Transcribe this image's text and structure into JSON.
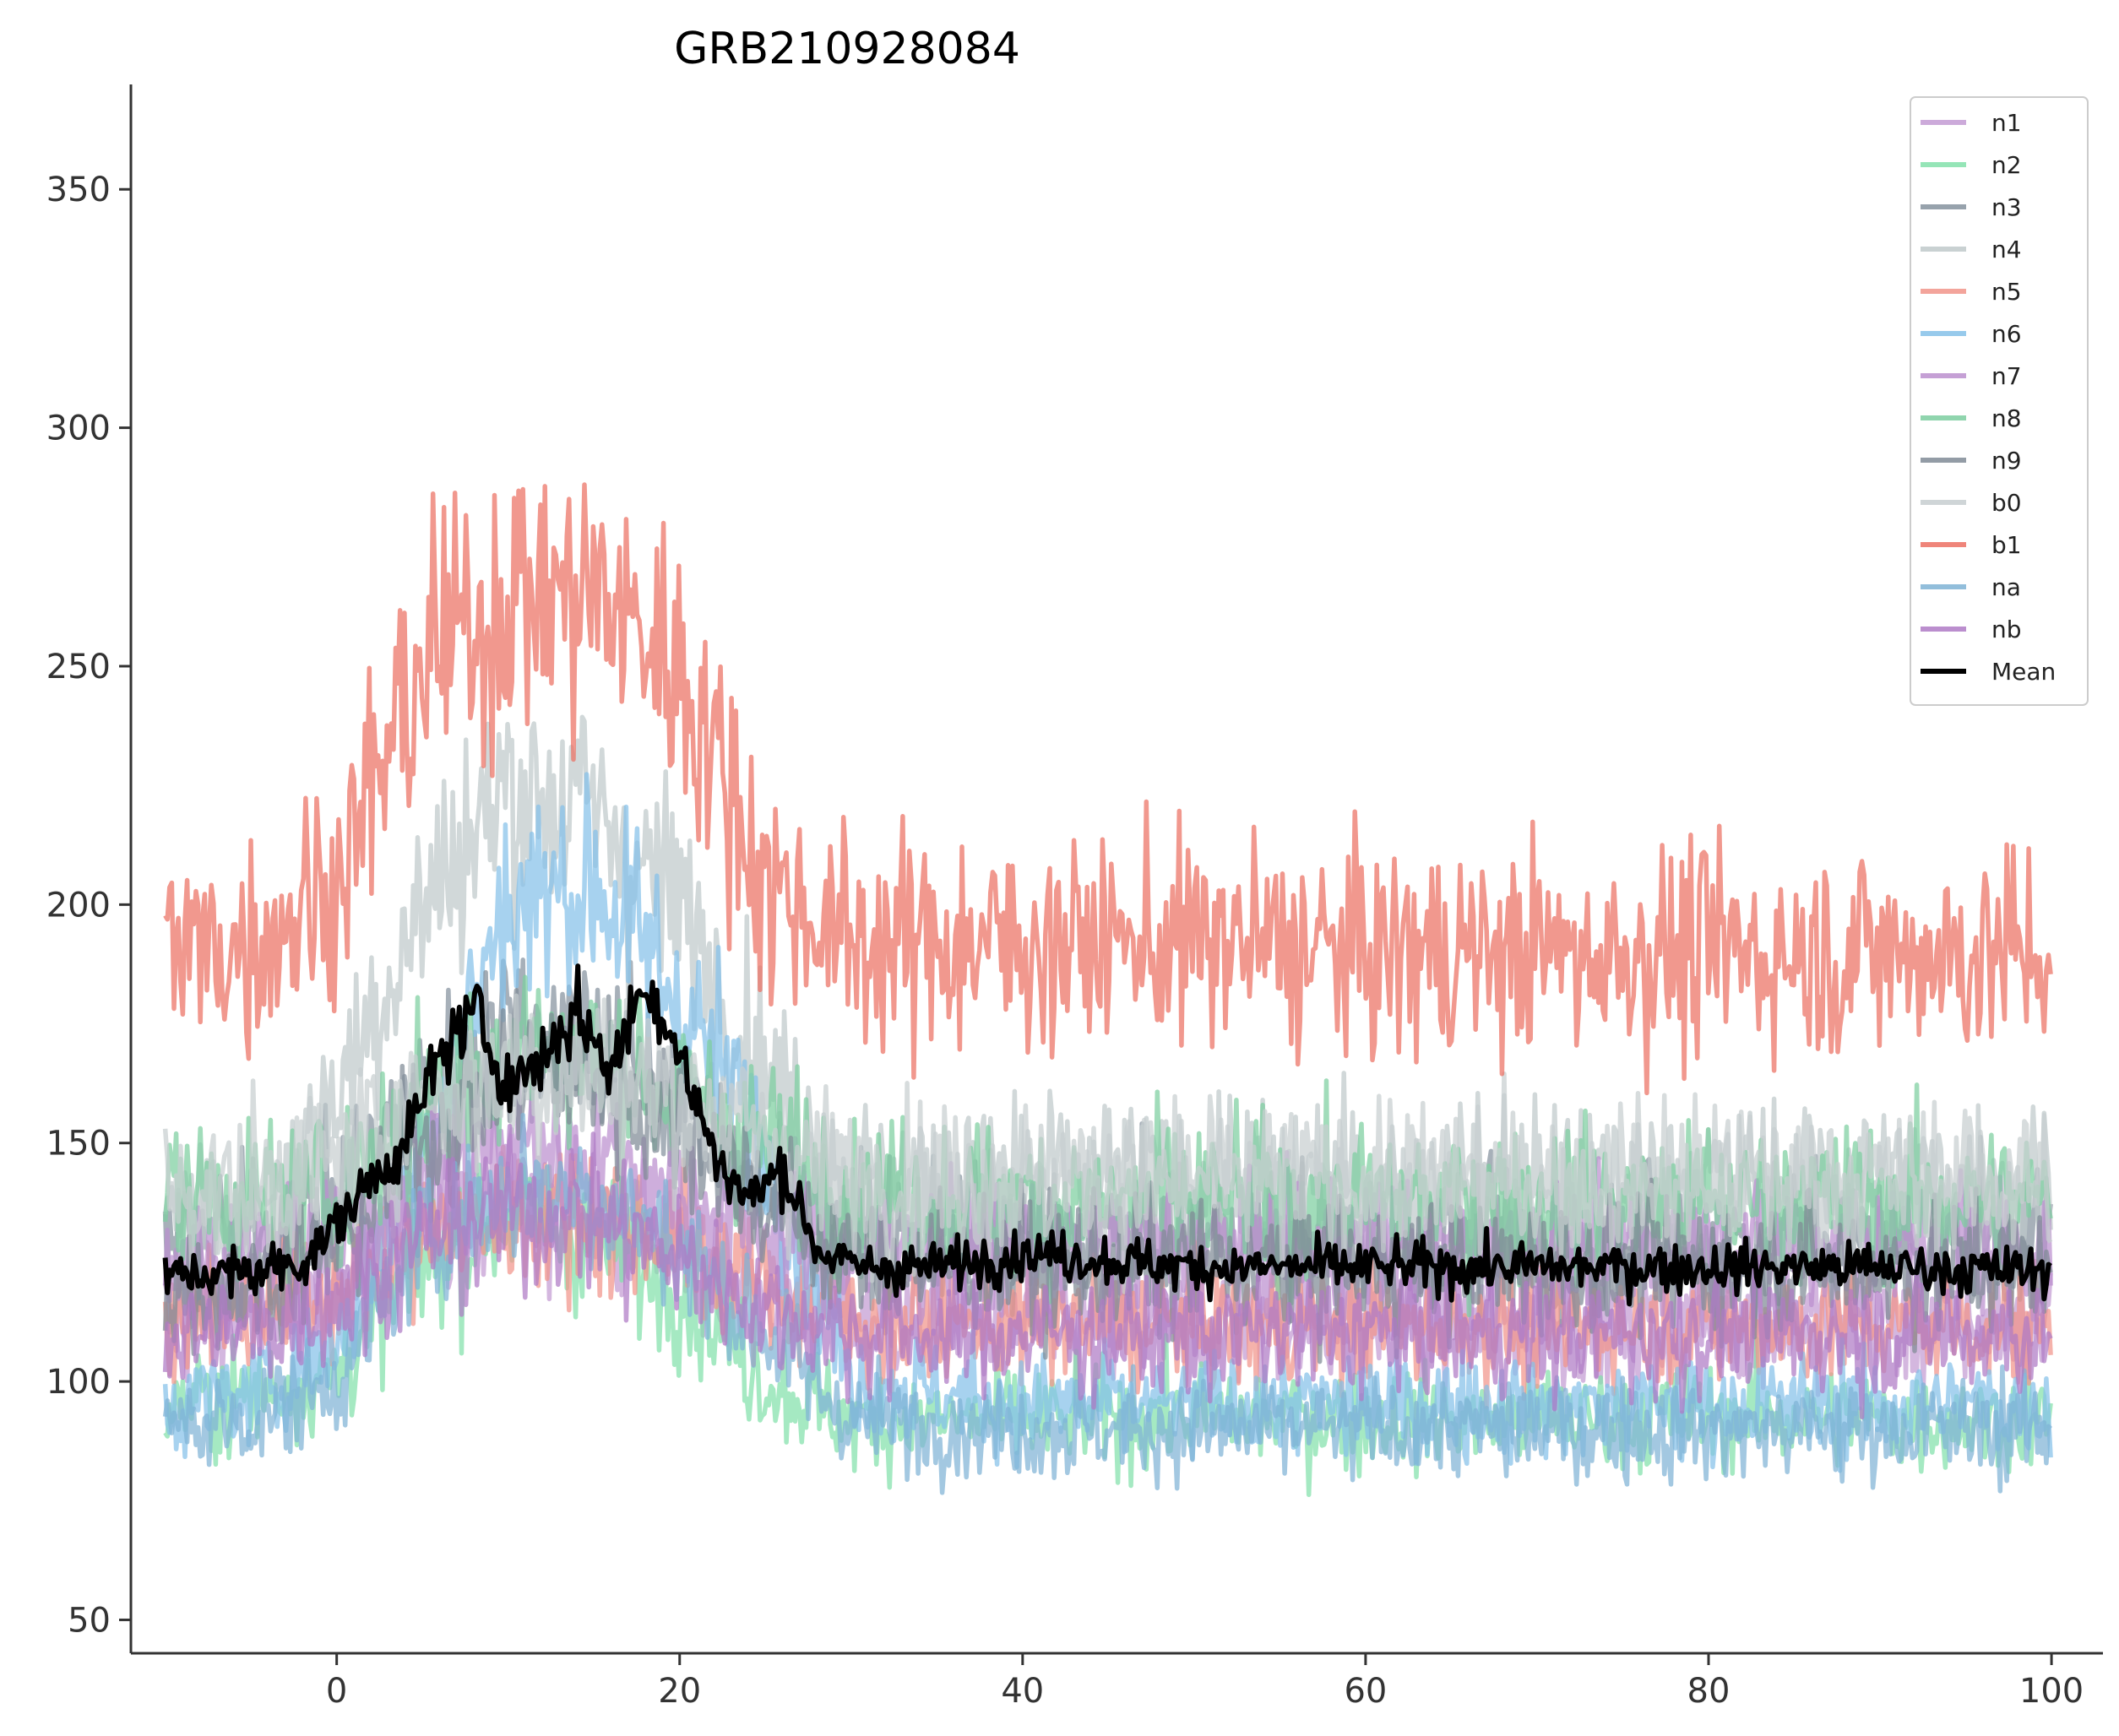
{
  "chart_data": {
    "type": "line",
    "title": "GRB210928084",
    "xlabel": "",
    "ylabel": "",
    "xlim": [
      -12,
      103
    ],
    "ylim": [
      43,
      372
    ],
    "xticks": [
      0,
      20,
      40,
      60,
      80,
      100
    ],
    "yticks": [
      50,
      100,
      150,
      200,
      250,
      300,
      350
    ],
    "grid": false,
    "legend": "top-right",
    "x_range": [
      -10,
      100
    ],
    "series": [
      {
        "name": "n1",
        "color": "#c39bd3",
        "values": [
          [
            -10,
            112
          ],
          [
            -5,
            115
          ],
          [
            0,
            120
          ],
          [
            5,
            138
          ],
          [
            10,
            140
          ],
          [
            15,
            135
          ],
          [
            20,
            128
          ],
          [
            25,
            118
          ],
          [
            30,
            114
          ],
          [
            40,
            112
          ],
          [
            50,
            112
          ],
          [
            60,
            113
          ],
          [
            70,
            112
          ],
          [
            80,
            113
          ],
          [
            90,
            112
          ],
          [
            100,
            112
          ]
        ]
      },
      {
        "name": "n2",
        "color": "#82e0aa",
        "values": [
          [
            -10,
            95
          ],
          [
            -5,
            97
          ],
          [
            0,
            102
          ],
          [
            5,
            125
          ],
          [
            10,
            135
          ],
          [
            15,
            130
          ],
          [
            20,
            120
          ],
          [
            25,
            100
          ],
          [
            30,
            92
          ],
          [
            40,
            92
          ],
          [
            50,
            93
          ],
          [
            60,
            92
          ],
          [
            70,
            92
          ],
          [
            80,
            93
          ],
          [
            90,
            92
          ],
          [
            100,
            92
          ]
        ]
      },
      {
        "name": "n3",
        "color": "#85929e",
        "values": [
          [
            -10,
            130
          ],
          [
            -5,
            130
          ],
          [
            0,
            138
          ],
          [
            5,
            160
          ],
          [
            10,
            175
          ],
          [
            15,
            172
          ],
          [
            20,
            160
          ],
          [
            25,
            140
          ],
          [
            30,
            130
          ],
          [
            40,
            130
          ],
          [
            50,
            130
          ],
          [
            60,
            130
          ],
          [
            70,
            129
          ],
          [
            80,
            130
          ],
          [
            90,
            130
          ],
          [
            100,
            130
          ]
        ]
      },
      {
        "name": "n4",
        "color": "#bfc9ca",
        "values": [
          [
            -10,
            135
          ],
          [
            -5,
            135
          ],
          [
            0,
            160
          ],
          [
            5,
            200
          ],
          [
            10,
            225
          ],
          [
            15,
            220
          ],
          [
            20,
            200
          ],
          [
            25,
            165
          ],
          [
            30,
            142
          ],
          [
            40,
            143
          ],
          [
            50,
            143
          ],
          [
            60,
            142
          ],
          [
            70,
            142
          ],
          [
            80,
            143
          ],
          [
            90,
            142
          ],
          [
            100,
            142
          ]
        ]
      },
      {
        "name": "n5",
        "color": "#f1948a",
        "values": [
          [
            -10,
            115
          ],
          [
            -5,
            114
          ],
          [
            0,
            120
          ],
          [
            5,
            130
          ],
          [
            10,
            135
          ],
          [
            15,
            135
          ],
          [
            20,
            130
          ],
          [
            25,
            120
          ],
          [
            30,
            112
          ],
          [
            40,
            112
          ],
          [
            50,
            112
          ],
          [
            60,
            112
          ],
          [
            70,
            112
          ],
          [
            80,
            112
          ],
          [
            90,
            112
          ],
          [
            100,
            112
          ]
        ]
      },
      {
        "name": "n6",
        "color": "#85c1e9",
        "values": [
          [
            -10,
            95
          ],
          [
            -5,
            97
          ],
          [
            0,
            108
          ],
          [
            5,
            150
          ],
          [
            10,
            200
          ],
          [
            15,
            205
          ],
          [
            20,
            180
          ],
          [
            25,
            150
          ],
          [
            30,
            100
          ],
          [
            40,
            95
          ],
          [
            50,
            95
          ],
          [
            60,
            95
          ],
          [
            70,
            95
          ],
          [
            80,
            95
          ],
          [
            90,
            95
          ],
          [
            100,
            95
          ]
        ]
      },
      {
        "name": "n7",
        "color": "#bb8fce",
        "values": [
          [
            -10,
            125
          ],
          [
            -5,
            125
          ],
          [
            0,
            130
          ],
          [
            5,
            145
          ],
          [
            10,
            150
          ],
          [
            15,
            148
          ],
          [
            20,
            140
          ],
          [
            25,
            132
          ],
          [
            30,
            128
          ],
          [
            40,
            128
          ],
          [
            50,
            128
          ],
          [
            60,
            128
          ],
          [
            70,
            128
          ],
          [
            80,
            128
          ],
          [
            90,
            128
          ],
          [
            100,
            128
          ]
        ]
      },
      {
        "name": "n8",
        "color": "#7dcea0",
        "values": [
          [
            -10,
            140
          ],
          [
            -5,
            138
          ],
          [
            0,
            140
          ],
          [
            5,
            158
          ],
          [
            10,
            170
          ],
          [
            15,
            168
          ],
          [
            20,
            160
          ],
          [
            25,
            150
          ],
          [
            30,
            140
          ],
          [
            40,
            138
          ],
          [
            50,
            138
          ],
          [
            60,
            138
          ],
          [
            70,
            138
          ],
          [
            80,
            138
          ],
          [
            90,
            138
          ],
          [
            100,
            138
          ]
        ]
      },
      {
        "name": "n9",
        "color": "#808b96",
        "values": [
          [
            -10,
            120
          ],
          [
            -5,
            120
          ],
          [
            0,
            128
          ],
          [
            5,
            150
          ],
          [
            10,
            165
          ],
          [
            15,
            165
          ],
          [
            20,
            155
          ],
          [
            25,
            138
          ],
          [
            30,
            125
          ],
          [
            40,
            124
          ],
          [
            50,
            124
          ],
          [
            60,
            124
          ],
          [
            70,
            124
          ],
          [
            80,
            124
          ],
          [
            90,
            124
          ],
          [
            100,
            124
          ]
        ]
      },
      {
        "name": "b0",
        "color": "#c7ced0",
        "values": [
          [
            -10,
            140
          ],
          [
            -5,
            140
          ],
          [
            0,
            145
          ],
          [
            5,
            160
          ],
          [
            10,
            165
          ],
          [
            15,
            165
          ],
          [
            20,
            160
          ],
          [
            25,
            150
          ],
          [
            30,
            142
          ],
          [
            40,
            142
          ],
          [
            50,
            142
          ],
          [
            60,
            142
          ],
          [
            70,
            142
          ],
          [
            80,
            142
          ],
          [
            90,
            142
          ],
          [
            100,
            142
          ]
        ]
      },
      {
        "name": "b1",
        "color": "#ec7063",
        "values": [
          [
            -10,
            190
          ],
          [
            -5,
            192
          ],
          [
            0,
            205
          ],
          [
            5,
            250
          ],
          [
            10,
            265
          ],
          [
            15,
            265
          ],
          [
            20,
            250
          ],
          [
            25,
            205
          ],
          [
            30,
            192
          ],
          [
            40,
            192
          ],
          [
            50,
            192
          ],
          [
            60,
            190
          ],
          [
            70,
            190
          ],
          [
            80,
            190
          ],
          [
            90,
            190
          ],
          [
            100,
            190
          ]
        ]
      },
      {
        "name": "na",
        "color": "#7fb3d5",
        "values": [
          [
            -10,
            90
          ],
          [
            -5,
            92
          ],
          [
            0,
            100
          ],
          [
            5,
            130
          ],
          [
            10,
            140
          ],
          [
            15,
            140
          ],
          [
            20,
            128
          ],
          [
            25,
            110
          ],
          [
            30,
            92
          ],
          [
            40,
            90
          ],
          [
            50,
            90
          ],
          [
            60,
            90
          ],
          [
            70,
            90
          ],
          [
            80,
            90
          ],
          [
            90,
            90
          ],
          [
            100,
            90
          ]
        ]
      },
      {
        "name": "nb",
        "color": "#af7ac5",
        "values": [
          [
            -10,
            110
          ],
          [
            -5,
            110
          ],
          [
            0,
            118
          ],
          [
            5,
            130
          ],
          [
            10,
            135
          ],
          [
            15,
            135
          ],
          [
            20,
            125
          ],
          [
            25,
            115
          ],
          [
            30,
            110
          ],
          [
            40,
            110
          ],
          [
            50,
            110
          ],
          [
            60,
            110
          ],
          [
            70,
            110
          ],
          [
            80,
            110
          ],
          [
            90,
            110
          ],
          [
            100,
            110
          ]
        ]
      },
      {
        "name": "Mean",
        "color": "#000000",
        "values": [
          [
            -10,
            122
          ],
          [
            -5,
            123
          ],
          [
            -2,
            125
          ],
          [
            0,
            133
          ],
          [
            2,
            142
          ],
          [
            4,
            150
          ],
          [
            6,
            168
          ],
          [
            8,
            178
          ],
          [
            10,
            162
          ],
          [
            12,
            168
          ],
          [
            14,
            178
          ],
          [
            16,
            165
          ],
          [
            18,
            185
          ],
          [
            20,
            168
          ],
          [
            22,
            148
          ],
          [
            24,
            138
          ],
          [
            26,
            145
          ],
          [
            28,
            128
          ],
          [
            30,
            124
          ],
          [
            35,
            124
          ],
          [
            40,
            127
          ],
          [
            50,
            124
          ],
          [
            60,
            124
          ],
          [
            70,
            124
          ],
          [
            80,
            124
          ],
          [
            90,
            124
          ],
          [
            100,
            123
          ]
        ]
      }
    ]
  }
}
